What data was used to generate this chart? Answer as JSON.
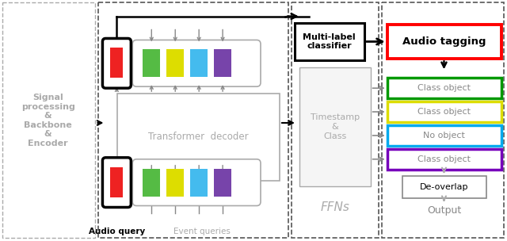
{
  "bg_color": "#ffffff",
  "fig_width": 6.4,
  "fig_height": 3.04,
  "signal_text": "Signal\nprocessing\n&\nBackbone\n&\nEncoder",
  "transformer_text": "Transformer  decoder",
  "multilabel_text": "Multi-label\nclassifier",
  "timestamp_text": "Timestamp\n&\nClass",
  "ffns_text": "FFNs",
  "audio_tagging_text": "Audio tagging",
  "class_obj_labels": [
    "Class object",
    "Class object",
    "No object",
    "Class object"
  ],
  "class_obj_colors": [
    "#009900",
    "#dddd00",
    "#00aaee",
    "#7700bb"
  ],
  "deoverlap_text": "De-overlap",
  "output_text": "Output",
  "audio_query_text": "Audio query",
  "event_queries_text": "Event queries",
  "query_colors_top": [
    "#55bb44",
    "#dddd00",
    "#44bbee",
    "#7744aa"
  ],
  "query_colors_bot": [
    "#55bb44",
    "#dddd00",
    "#44bbee",
    "#7744aa"
  ]
}
